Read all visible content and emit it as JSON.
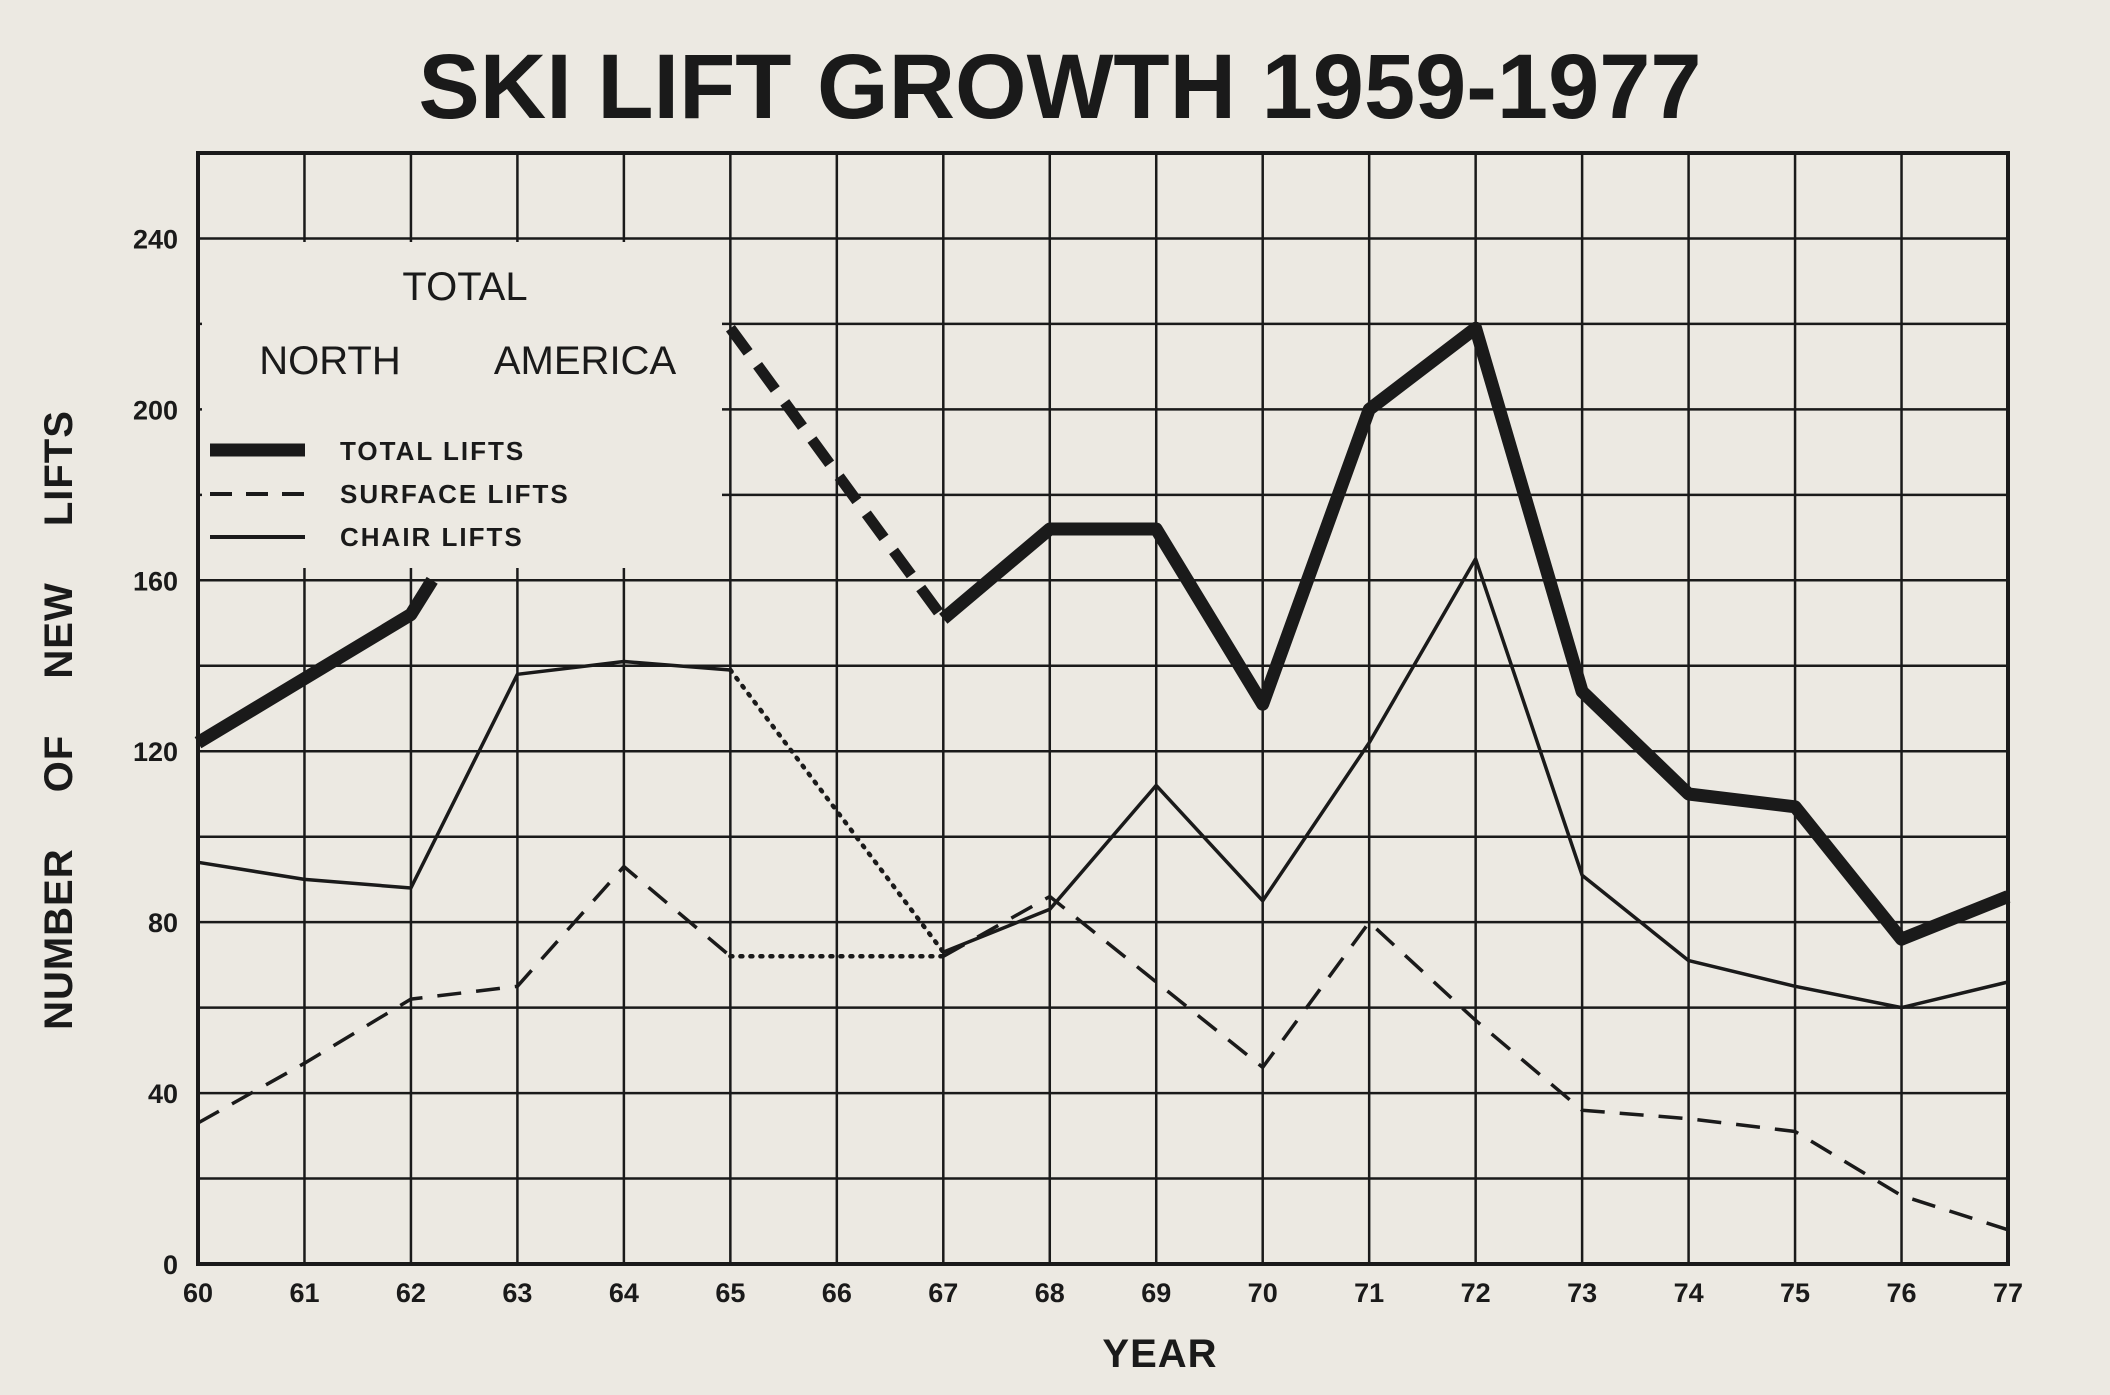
{
  "chart_data": {
    "type": "line",
    "title": "SKI LIFT GROWTH 1959-1977",
    "xlabel": "YEAR",
    "ylabel": "NUMBER OF NEW LIFTS",
    "x": [
      "60",
      "61",
      "62",
      "63",
      "64",
      "65",
      "66",
      "67",
      "68",
      "69",
      "70",
      "71",
      "72",
      "73",
      "74",
      "75",
      "76",
      "77"
    ],
    "xlim": [
      60,
      77
    ],
    "ylim": [
      0,
      260
    ],
    "yticks": [
      0,
      40,
      80,
      120,
      160,
      200,
      240
    ],
    "grid": true,
    "legend_position": "top-left",
    "legend_header": [
      "TOTAL",
      "NORTH",
      "AMERICA"
    ],
    "series": [
      {
        "name": "TOTAL LIFTS",
        "style": "thick",
        "segments": [
          {
            "x": [
              60,
              61,
              62,
              62.2
            ],
            "y": [
              122,
              137,
              152,
              160
            ]
          },
          {
            "x": [
              65,
              67
            ],
            "y": [
              219,
              151
            ],
            "style": "thick-dashed"
          },
          {
            "x": [
              67,
              68,
              69,
              70,
              71,
              72,
              73,
              74,
              75,
              76,
              77
            ],
            "y": [
              151,
              172,
              172,
              131,
              200,
              219,
              134,
              110,
              107,
              76,
              86
            ]
          }
        ]
      },
      {
        "name": "SURFACE LIFTS",
        "style": "dashed",
        "segments": [
          {
            "x": [
              60,
              61,
              62,
              63,
              64,
              65
            ],
            "y": [
              33,
              47,
              62,
              65,
              93,
              72
            ]
          },
          {
            "x": [
              65,
              67
            ],
            "y": [
              72,
              72
            ],
            "style": "dotted"
          },
          {
            "x": [
              67,
              68,
              69,
              70,
              71,
              72,
              73,
              74,
              75,
              76,
              77
            ],
            "y": [
              72,
              86,
              66,
              46,
              80,
              57,
              36,
              34,
              31,
              16,
              8
            ]
          }
        ]
      },
      {
        "name": "CHAIR LIFTS",
        "style": "thin",
        "segments": [
          {
            "x": [
              60,
              61,
              62,
              63,
              64,
              65
            ],
            "y": [
              94,
              90,
              88,
              138,
              141,
              139
            ]
          },
          {
            "x": [
              65,
              67
            ],
            "y": [
              139,
              73
            ],
            "style": "dotted"
          },
          {
            "x": [
              67,
              68,
              69,
              70,
              71,
              72,
              73,
              74,
              75,
              76,
              77
            ],
            "y": [
              73,
              83,
              112,
              85,
              122,
              165,
              91,
              71,
              65,
              60,
              66
            ]
          }
        ]
      }
    ],
    "colors": {
      "background": "#ece9e2",
      "ink": "#1a1a1a"
    }
  }
}
